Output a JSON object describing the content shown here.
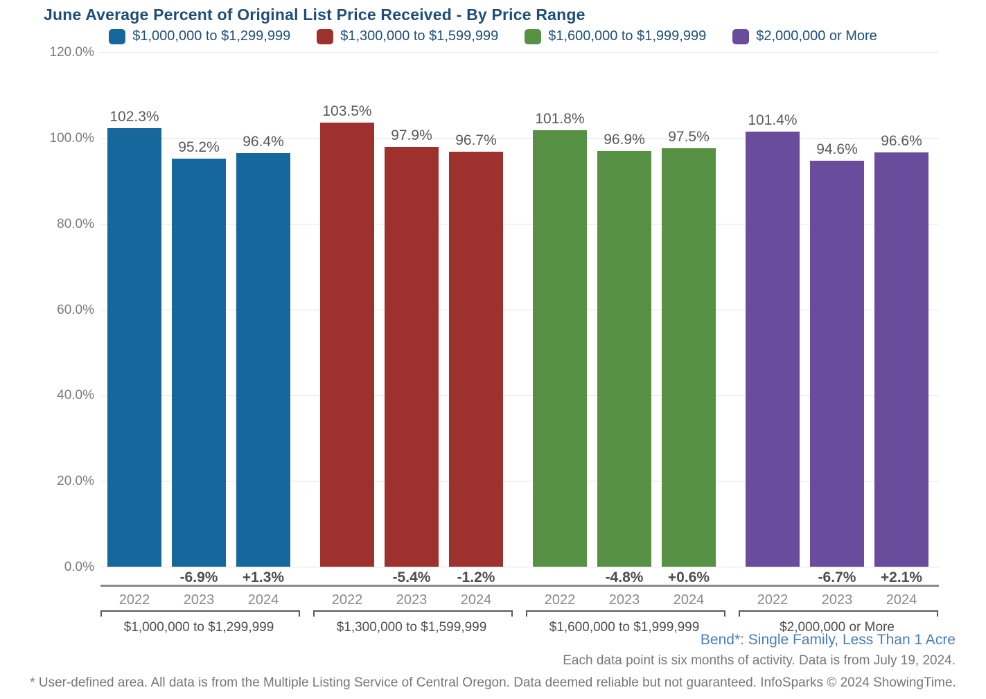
{
  "title": "June Average Percent of Original List Price Received - By Price Range",
  "legend": {
    "items": [
      {
        "label": "$1,000,000 to $1,299,999",
        "color": "#16689C"
      },
      {
        "label": "$1,300,000 to $1,599,999",
        "color": "#9E312E"
      },
      {
        "label": "$1,600,000 to $1,999,999",
        "color": "#579144"
      },
      {
        "label": "$2,000,000 or More",
        "color": "#6A4C9C"
      }
    ]
  },
  "chart_data": {
    "type": "bar",
    "title": "June Average Percent of Original List Price Received - By Price Range",
    "xlabel": "",
    "ylabel": "",
    "ylim": [
      0,
      120
    ],
    "grid": "horizontal",
    "legend_position": "top",
    "yticks": [
      {
        "value": 0,
        "label": "0.0%"
      },
      {
        "value": 20,
        "label": "20.0%"
      },
      {
        "value": 40,
        "label": "40.0%"
      },
      {
        "value": 60,
        "label": "60.0%"
      },
      {
        "value": 80,
        "label": "80.0%"
      },
      {
        "value": 100,
        "label": "100.0%"
      },
      {
        "value": 120,
        "label": "120.0%"
      }
    ],
    "categories": [
      "2022",
      "2023",
      "2024"
    ],
    "groups": [
      {
        "name": "$1,000,000 to $1,299,999",
        "color": "#16689C",
        "values": [
          102.3,
          95.2,
          96.4
        ],
        "value_labels": [
          "102.3%",
          "95.2%",
          "96.4%"
        ],
        "change_labels": [
          "",
          "-6.9%",
          "+1.3%"
        ]
      },
      {
        "name": "$1,300,000 to $1,599,999",
        "color": "#9E312E",
        "values": [
          103.5,
          97.9,
          96.7
        ],
        "value_labels": [
          "103.5%",
          "97.9%",
          "96.7%"
        ],
        "change_labels": [
          "",
          "-5.4%",
          "-1.2%"
        ]
      },
      {
        "name": "$1,600,000 to $1,999,999",
        "color": "#579144",
        "values": [
          101.8,
          96.9,
          97.5
        ],
        "value_labels": [
          "101.8%",
          "96.9%",
          "97.5%"
        ],
        "change_labels": [
          "",
          "-4.8%",
          "+0.6%"
        ]
      },
      {
        "name": "$2,000,000 or More",
        "color": "#6A4C9C",
        "values": [
          101.4,
          94.6,
          96.6
        ],
        "value_labels": [
          "101.4%",
          "94.6%",
          "96.6%"
        ],
        "change_labels": [
          "",
          "-6.7%",
          "+2.1%"
        ]
      }
    ]
  },
  "footnotes": {
    "area_label": "Bend*: Single Family, Less Than 1 Acre",
    "data_note": "Each data point is six months of activity. Data is from July 19, 2024.",
    "disclaimer": "* User-defined area. All data is from the Multiple Listing Service of Central Oregon. Data deemed reliable but not guaranteed. InfoSparks © 2024 ShowingTime."
  },
  "colors": {
    "title_text": "#1F4E79",
    "area_label_text": "#4A7DB9",
    "muted_text": "#777777",
    "axis_divider": "#8A8A8A",
    "gridline": "#E4E4E4"
  }
}
